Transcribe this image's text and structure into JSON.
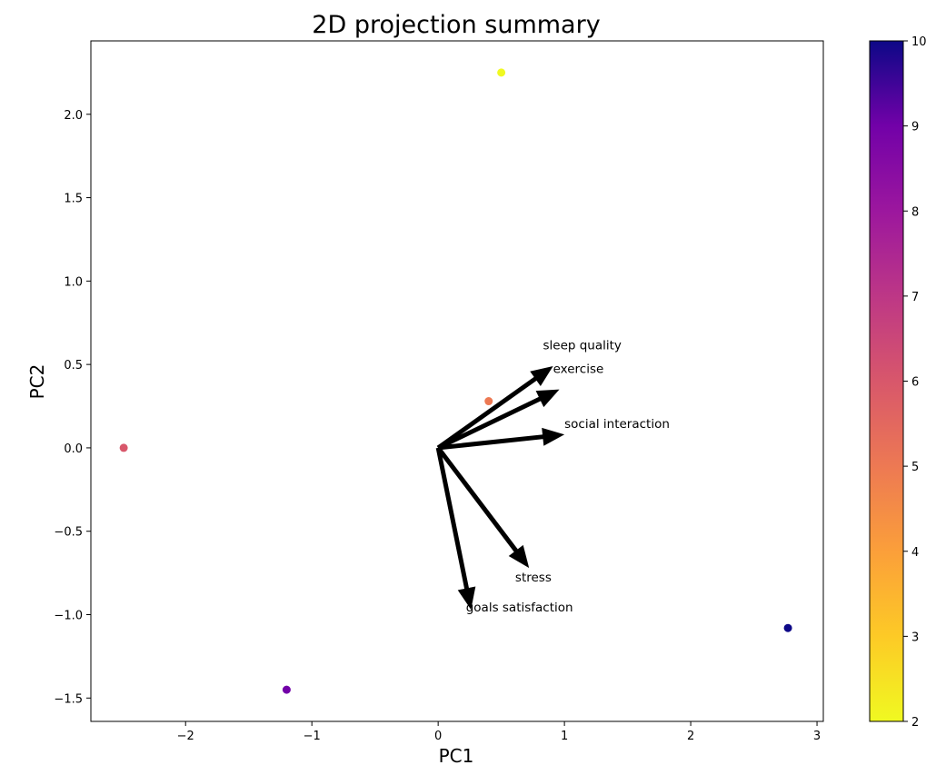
{
  "chart_data": {
    "type": "scatter",
    "title": "2D projection summary",
    "xlabel": "PC1",
    "ylabel": "PC2",
    "xlim": [
      -2.75,
      3.05
    ],
    "ylim": [
      -1.64,
      2.44
    ],
    "xticks": [
      -2,
      -1,
      0,
      1,
      2,
      3
    ],
    "xtick_labels": [
      "−2",
      "−1",
      "0",
      "1",
      "2",
      "3"
    ],
    "yticks": [
      -1.5,
      -1.0,
      -0.5,
      0.0,
      0.5,
      1.0,
      1.5,
      2.0
    ],
    "ytick_labels": [
      "−1.5",
      "−1.0",
      "−0.5",
      "0.0",
      "0.5",
      "1.0",
      "1.5",
      "2.0"
    ],
    "grid": false,
    "points": [
      {
        "x": 0.5,
        "y": 2.25,
        "value": 2
      },
      {
        "x": 0.4,
        "y": 0.28,
        "value": 5
      },
      {
        "x": -2.49,
        "y": 0.0,
        "value": 6
      },
      {
        "x": -1.2,
        "y": -1.45,
        "value": 9
      },
      {
        "x": 2.77,
        "y": -1.08,
        "value": 10
      }
    ],
    "loadings": [
      {
        "label": "sleep quality",
        "x": 0.91,
        "y": 0.49,
        "label_x": 0.83,
        "label_y": 0.59
      },
      {
        "label": "exercise",
        "x": 0.96,
        "y": 0.35,
        "label_x": 0.91,
        "label_y": 0.45
      },
      {
        "label": "social interaction",
        "x": 1.0,
        "y": 0.08,
        "label_x": 1.0,
        "label_y": 0.12
      },
      {
        "label": "stress",
        "x": 0.72,
        "y": -0.72,
        "label_x": 0.61,
        "label_y": -0.8
      },
      {
        "label": "goals satisfaction",
        "x": 0.26,
        "y": -0.97,
        "label_x": 0.22,
        "label_y": -0.98
      }
    ],
    "colorbar": {
      "min": 2,
      "max": 10,
      "ticks": [
        2,
        3,
        4,
        5,
        6,
        7,
        8,
        9,
        10
      ],
      "colormap": "plasma_r"
    }
  }
}
